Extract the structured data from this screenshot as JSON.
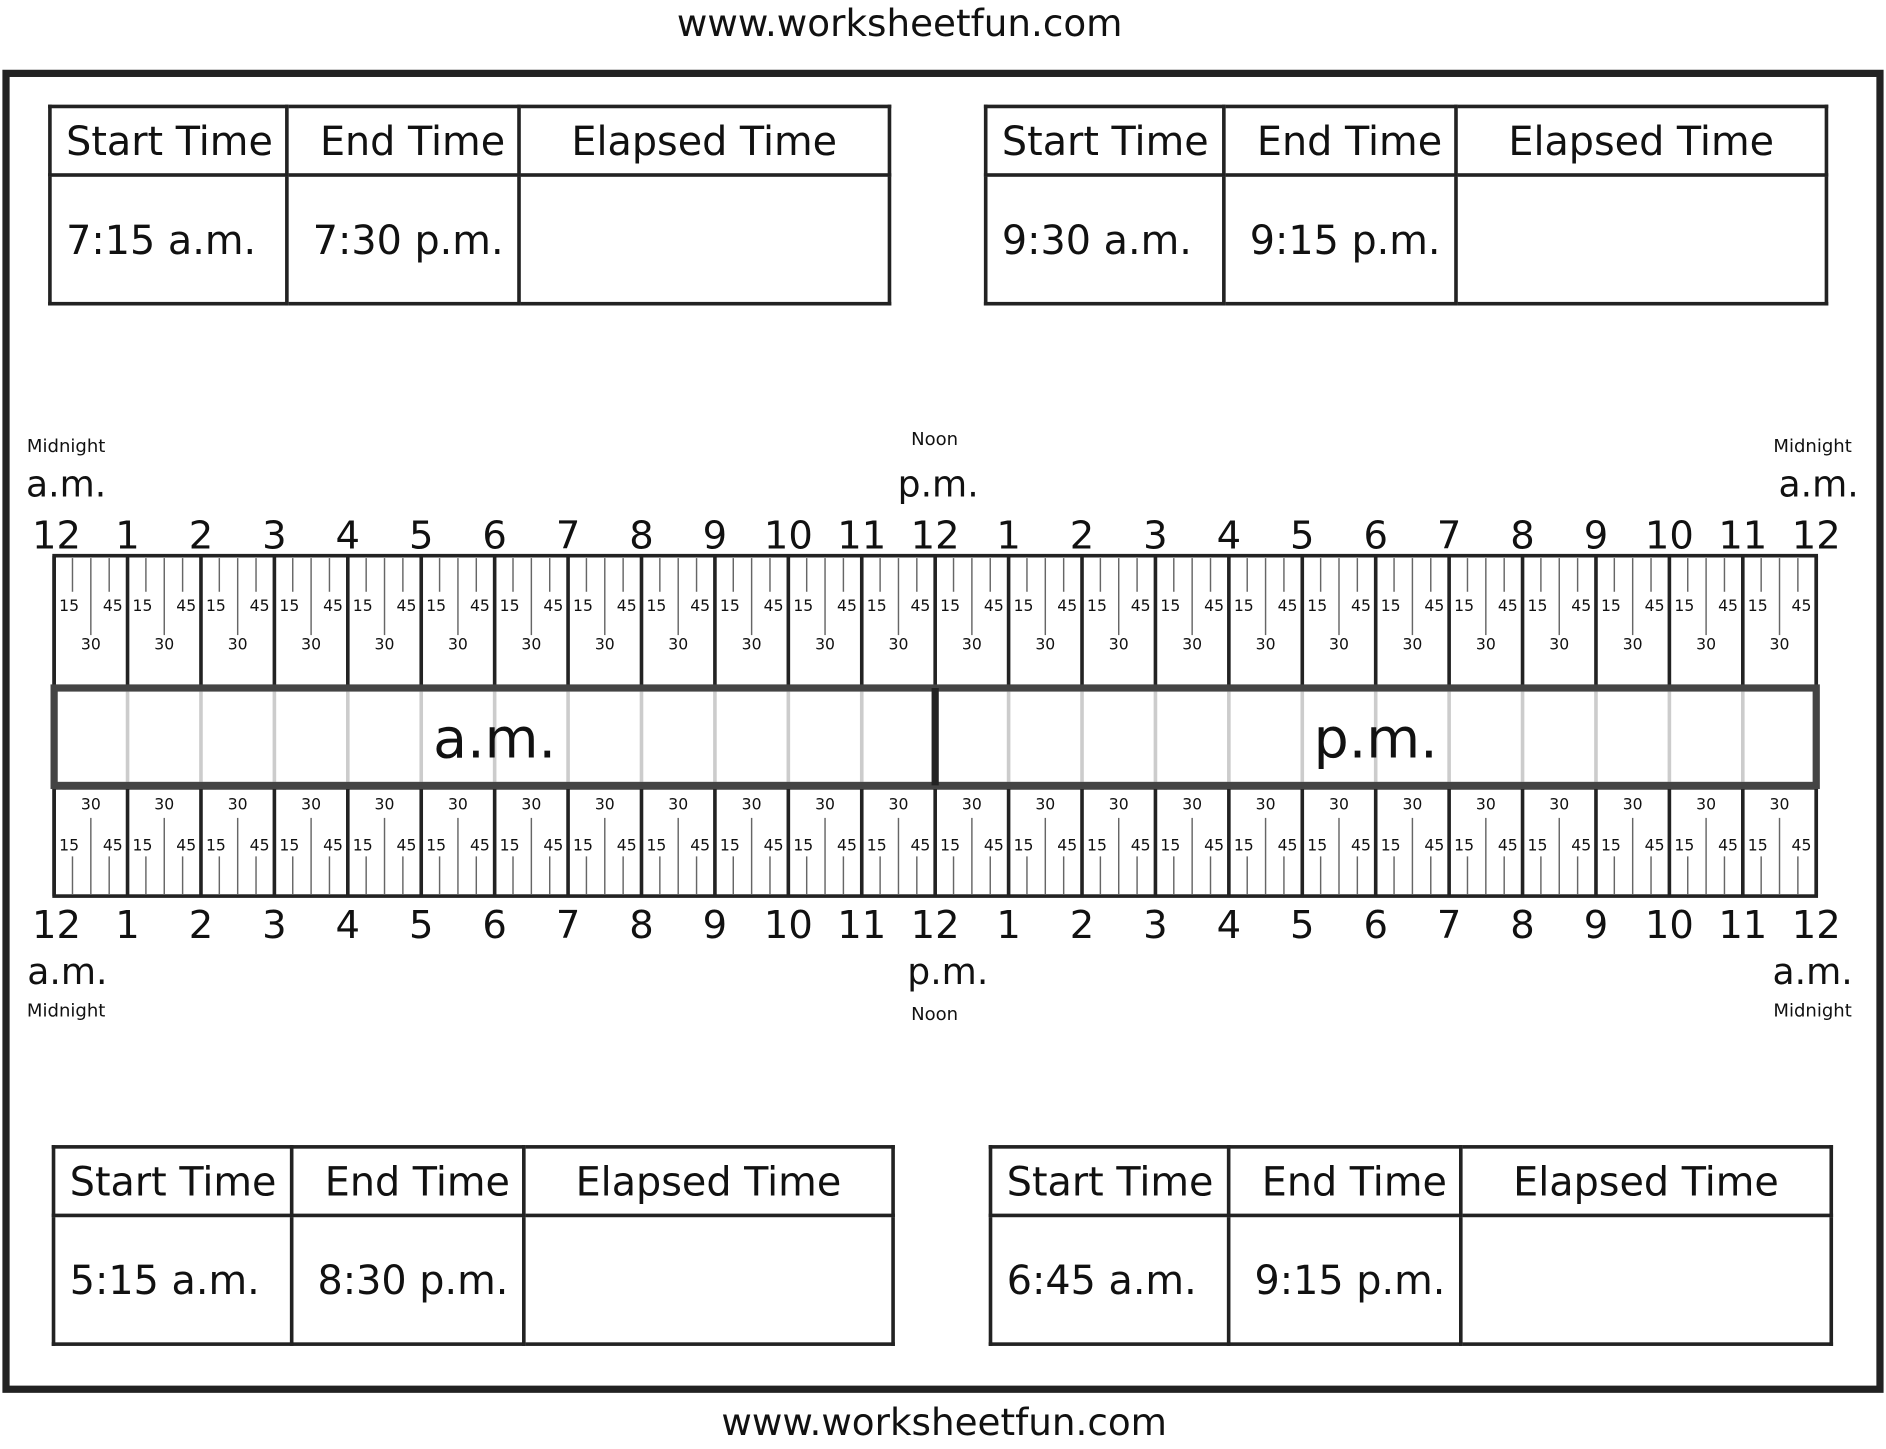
{
  "header_url": "www.worksheetfun.com",
  "footer_url": "www.worksheetfun.com",
  "table_headers": {
    "start": "Start Time",
    "end": "End Time",
    "elapsed": "Elapsed Time"
  },
  "problems": [
    {
      "start": "7:15 a.m.",
      "end": "7:30 p.m.",
      "elapsed": ""
    },
    {
      "start": "9:30 a.m.",
      "end": "9:15 p.m.",
      "elapsed": ""
    },
    {
      "start": "5:15 a.m.",
      "end": "8:30 p.m.",
      "elapsed": ""
    },
    {
      "start": "6:45 a.m.",
      "end": "9:15 p.m.",
      "elapsed": ""
    }
  ],
  "timeline": {
    "hour_labels": [
      "12",
      "1",
      "2",
      "3",
      "4",
      "5",
      "6",
      "7",
      "8",
      "9",
      "10",
      "11",
      "12",
      "1",
      "2",
      "3",
      "4",
      "5",
      "6",
      "7",
      "8",
      "9",
      "10",
      "11",
      "12"
    ],
    "minute_labels": {
      "q1": "15",
      "half": "30",
      "q3": "45"
    },
    "am_label": "a.m.",
    "pm_label": "p.m.",
    "midnight_label": "Midnight",
    "noon_label": "Noon",
    "band_am": "a.m.",
    "band_pm": "p.m."
  },
  "colors": {
    "ink": "#111111",
    "band_outline": "#444444",
    "faint_line": "#cccccc"
  }
}
